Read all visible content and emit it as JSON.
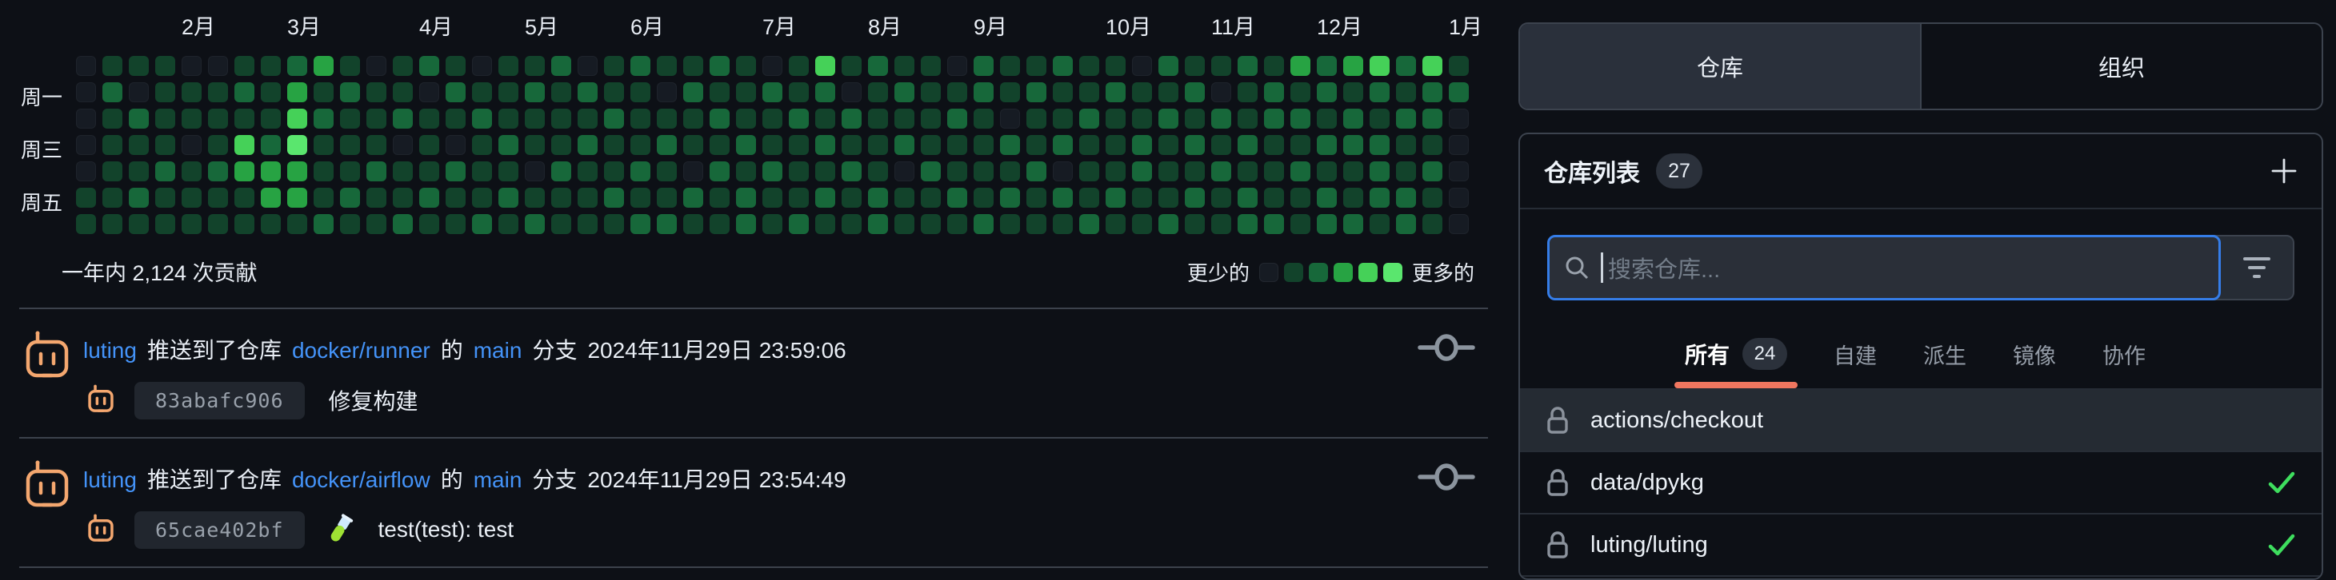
{
  "heatmap": {
    "summary": "一年内 2,124 次贡献",
    "legend_less": "更少的",
    "legend_more": "更多的",
    "palette": [
      "#161b23",
      "#12432b",
      "#17683a",
      "#27a343",
      "#45d158",
      "#5ae66e"
    ],
    "months": [
      {
        "label": "2月",
        "col": 4
      },
      {
        "label": "3月",
        "col": 8
      },
      {
        "label": "4月",
        "col": 13
      },
      {
        "label": "5月",
        "col": 17
      },
      {
        "label": "6月",
        "col": 21
      },
      {
        "label": "7月",
        "col": 26
      },
      {
        "label": "8月",
        "col": 30
      },
      {
        "label": "9月",
        "col": 34
      },
      {
        "label": "10月",
        "col": 39
      },
      {
        "label": "11月",
        "col": 43
      },
      {
        "label": "12月",
        "col": 47
      },
      {
        "label": "1月",
        "col": 52
      }
    ],
    "day_labels": [
      {
        "label": "周一",
        "row": 1
      },
      {
        "label": "周三",
        "row": 3
      },
      {
        "label": "周五",
        "row": 5
      }
    ],
    "weeks": [
      "0000011",
      "1211111",
      "1021121",
      "1111211",
      "0110111",
      "0111211",
      "1214311",
      "1112331",
      "2345331",
      "3121112",
      "1211121",
      "0111211",
      "1120112",
      "2011121",
      "1210211",
      "0121112",
      "1112121",
      "1211012",
      "2111211",
      "0212111",
      "1121121",
      "2111212",
      "1012112",
      "1211021",
      "2121211",
      "1112122",
      "0211211",
      "1121112",
      "4212121",
      "1021211",
      "2111122",
      "1212011",
      "1111211",
      "0121121",
      "2211112",
      "1102121",
      "1211211",
      "2112021",
      "1121112",
      "1211121",
      "0112211",
      "2121112",
      "1212121",
      "1021211",
      "2112122",
      "1221112",
      "3121211",
      "2212122",
      "3122112",
      "4212221",
      "2121122",
      "4221211",
      "1200000"
    ]
  },
  "activity": {
    "items": [
      {
        "user": "luting",
        "action": "推送到了仓库",
        "repo": "docker/runner",
        "particle": "的",
        "branch": "main",
        "suffix": "分支",
        "datetime": "2024年11月29日 23:59:06",
        "commit_hash": "83abafc906",
        "commit_message": "修复构建",
        "has_emoji": false
      },
      {
        "user": "luting",
        "action": "推送到了仓库",
        "repo": "docker/airflow",
        "particle": "的",
        "branch": "main",
        "suffix": "分支",
        "datetime": "2024年11月29日 23:54:49",
        "commit_hash": "65cae402bf",
        "commit_message": "test(test): test",
        "has_emoji": true
      }
    ]
  },
  "panel": {
    "tabs": [
      {
        "label": "仓库",
        "active": true
      },
      {
        "label": "组织",
        "active": false
      }
    ],
    "list_header": {
      "title": "仓库列表",
      "count": "27"
    },
    "search": {
      "placeholder": "搜索仓库..."
    },
    "filter_tabs": [
      {
        "label": "所有",
        "count": "24",
        "active": true
      },
      {
        "label": "自建",
        "count": "",
        "active": false
      },
      {
        "label": "派生",
        "count": "",
        "active": false
      },
      {
        "label": "镜像",
        "count": "",
        "active": false
      },
      {
        "label": "协作",
        "count": "",
        "active": false
      }
    ],
    "repos": [
      {
        "name": "actions/checkout",
        "checked": false,
        "highlighted": true
      },
      {
        "name": "data/dpykg",
        "checked": true,
        "highlighted": false
      },
      {
        "name": "luting/luting",
        "checked": true,
        "highlighted": false
      }
    ]
  },
  "colors": {
    "background": "#0d1016",
    "link_blue": "#4493f8",
    "focus_blue": "#357de8",
    "active_underline": "#f0765f",
    "check_green": "#3ede5e",
    "avatar_orange": "#f4a76f",
    "panel_border": "#3c434e"
  }
}
